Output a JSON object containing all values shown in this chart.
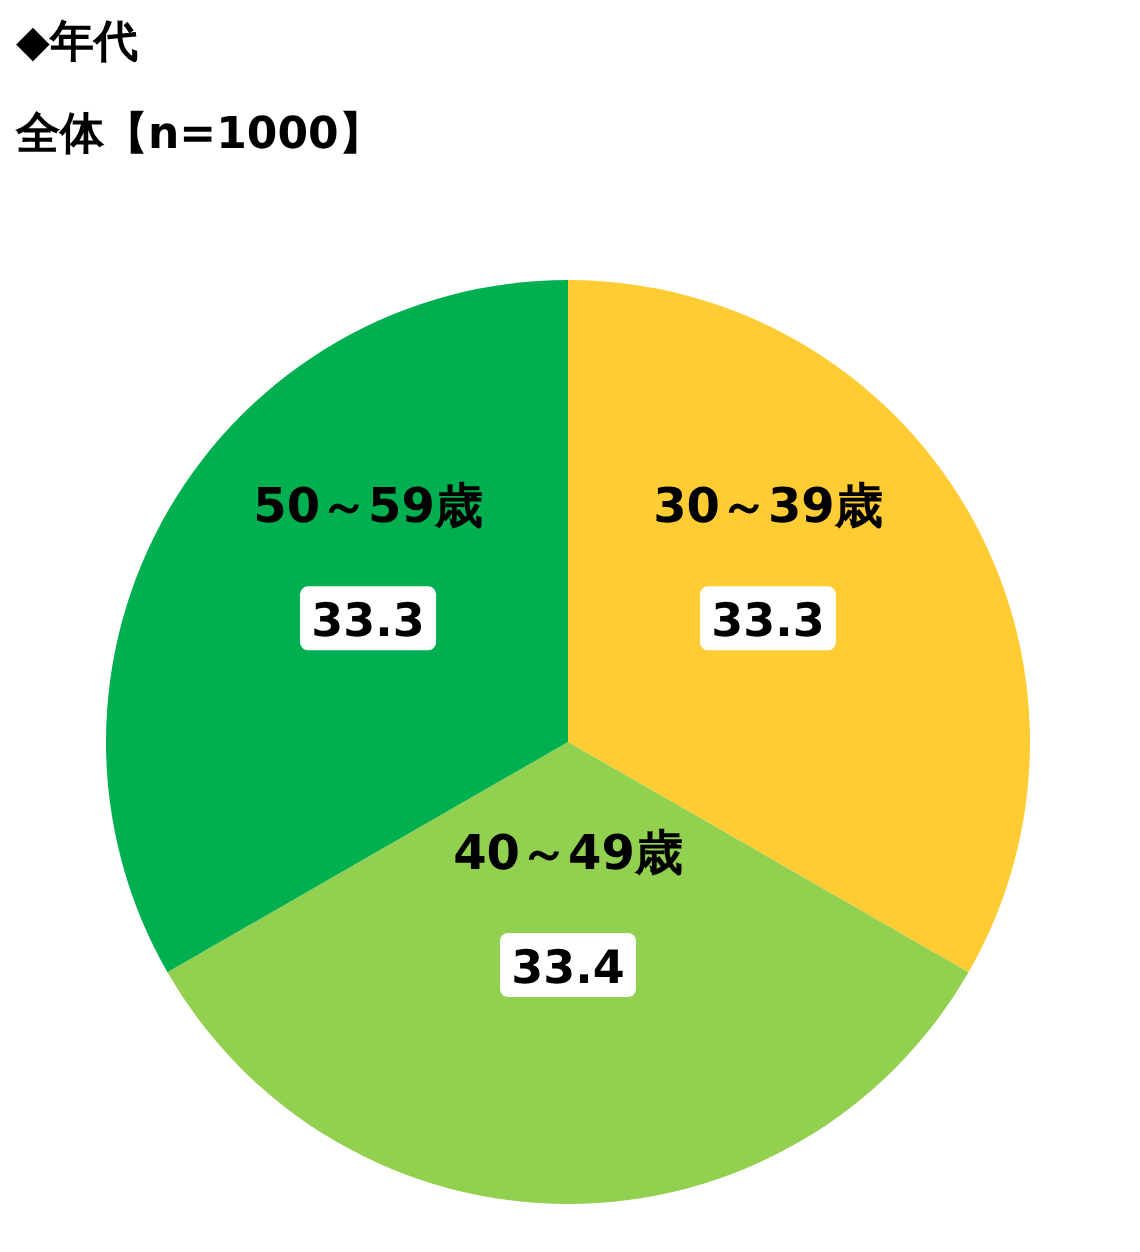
{
  "chart_data": {
    "type": "pie",
    "title": "◆年代",
    "subtitle": "全体【n=1000】",
    "categories": [
      "30～39歳",
      "40～49歳",
      "50～59歳"
    ],
    "values": [
      33.3,
      33.4,
      33.3
    ],
    "colors": [
      "#ffcc33",
      "#92d050",
      "#00b050"
    ],
    "data_labels": true
  }
}
